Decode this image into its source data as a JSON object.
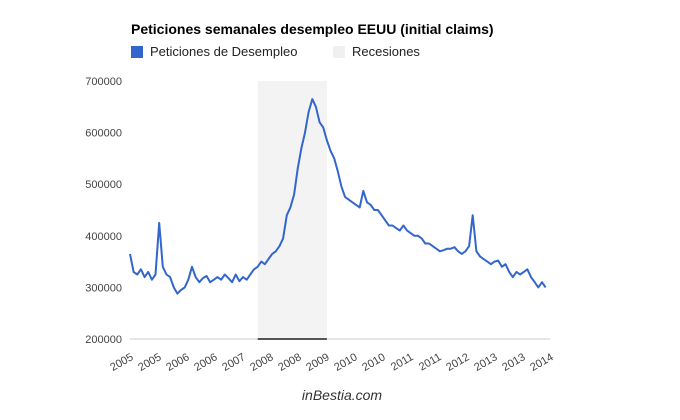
{
  "chart_data": {
    "type": "line",
    "title": "Peticiones semanales desempleo EEUU (initial claims)",
    "legend": {
      "placement": "top-left",
      "entries": [
        "Peticiones de Desempleo",
        "Recesiones"
      ]
    },
    "colors": {
      "series": "#3366cc",
      "recession": "#f3f3f3",
      "axis": "#333333"
    },
    "xlim": [
      2005.0,
      2014.6
    ],
    "ylim": [
      200000,
      700000
    ],
    "y_ticks": [
      200000,
      300000,
      400000,
      500000,
      600000,
      700000
    ],
    "y_tick_labels": [
      "200000",
      "300000",
      "400000",
      "500000",
      "600000",
      "700000"
    ],
    "x_tick_labels": [
      "2005",
      "2005",
      "2006",
      "2006",
      "2007",
      "2008",
      "2008",
      "2009",
      "2010",
      "2010",
      "2011",
      "2011",
      "2012",
      "2013",
      "2013",
      "2014"
    ],
    "recessions": [
      {
        "name": "Recesiones",
        "start": 2007.92,
        "end": 2009.5
      }
    ],
    "series": [
      {
        "name": "Peticiones de Desempleo",
        "x_start": 2005.0,
        "x_step_months": 1,
        "values": [
          365000,
          330000,
          325000,
          335000,
          320000,
          330000,
          315000,
          325000,
          425000,
          340000,
          325000,
          320000,
          300000,
          288000,
          295000,
          300000,
          315000,
          340000,
          320000,
          310000,
          318000,
          322000,
          310000,
          315000,
          320000,
          315000,
          325000,
          318000,
          310000,
          325000,
          312000,
          320000,
          315000,
          325000,
          335000,
          340000,
          350000,
          345000,
          355000,
          365000,
          370000,
          380000,
          395000,
          440000,
          455000,
          480000,
          530000,
          570000,
          600000,
          640000,
          665000,
          650000,
          620000,
          610000,
          585000,
          565000,
          550000,
          525000,
          495000,
          475000,
          470000,
          465000,
          460000,
          455000,
          487000,
          465000,
          460000,
          450000,
          450000,
          440000,
          430000,
          420000,
          420000,
          415000,
          410000,
          420000,
          410000,
          405000,
          400000,
          400000,
          395000,
          385000,
          385000,
          380000,
          375000,
          370000,
          372000,
          375000,
          375000,
          378000,
          370000,
          365000,
          370000,
          380000,
          440000,
          370000,
          360000,
          355000,
          350000,
          345000,
          350000,
          352000,
          340000,
          345000,
          330000,
          320000,
          330000,
          325000,
          330000,
          335000,
          320000,
          310000,
          300000,
          310000,
          300000
        ]
      }
    ]
  },
  "footer": "inBestia.com"
}
